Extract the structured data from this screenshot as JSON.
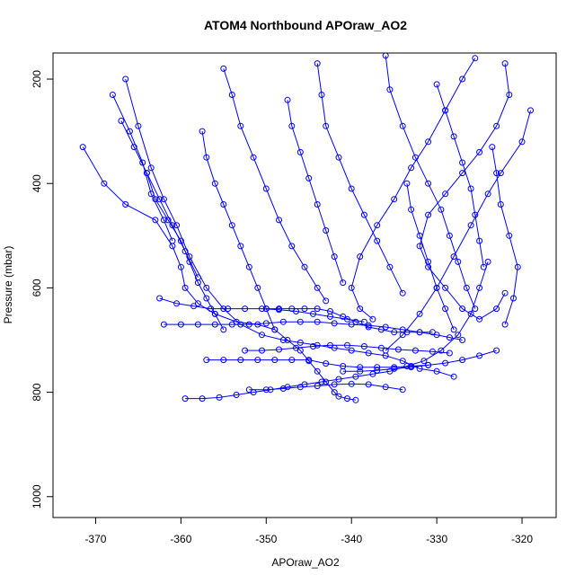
{
  "chart_data": {
    "type": "scatter",
    "title": "ATOM4 Northbound APOraw_AO2",
    "xlabel": "APOraw_AO2",
    "ylabel": "Pressure (mbar)",
    "xlim": [
      -375,
      -316
    ],
    "ylim": [
      1040,
      150
    ],
    "y_reversed": true,
    "x_ticks": [
      -370,
      -360,
      -350,
      -340,
      -330,
      -320
    ],
    "y_ticks": [
      200,
      400,
      600,
      800,
      1000
    ],
    "grid": false,
    "legend": "none",
    "marker": "open-circle",
    "line_style": "solid",
    "color": "#0000ff",
    "series": [
      {
        "x": [
          -371.5,
          -369.0,
          -366.5,
          -363.0,
          -361.0,
          -360.0,
          -359.5,
          -358.0,
          -356.0,
          -353.5,
          -351.0,
          -349.0,
          -347.5,
          -346.0,
          -345.0,
          -344.0,
          -343.0,
          -342.0,
          -341.5,
          -340.5,
          -339.5
        ],
        "y": [
          330,
          400,
          440,
          470,
          520,
          560,
          600,
          630,
          650,
          665,
          670,
          680,
          700,
          720,
          740,
          760,
          780,
          800,
          808,
          812,
          815
        ]
      },
      {
        "x": [
          -366.5,
          -365.0,
          -363.5,
          -362.0,
          -360.5,
          -359.0,
          -357.0,
          -355.0,
          -353.0,
          -350.5,
          -348.0,
          -346.0,
          -344.0,
          -342.0,
          -340.0,
          -338.0,
          -336.0,
          -334.0,
          -332.0,
          -330.0,
          -328.0
        ],
        "y": [
          200,
          290,
          370,
          430,
          480,
          540,
          600,
          640,
          670,
          690,
          700,
          705,
          710,
          715,
          720,
          725,
          730,
          740,
          755,
          760,
          770
        ]
      },
      {
        "x": [
          -359.5,
          -357.5,
          -355.5,
          -353.5,
          -351.5,
          -349.5,
          -347.5,
          -345.5,
          -343.5,
          -341.5,
          -339.5,
          -337.5,
          -335.5,
          -333.5,
          -331.5,
          -329.5,
          -327.5,
          -326.0,
          -325.0,
          -324.0
        ],
        "y": [
          812,
          812,
          810,
          805,
          800,
          795,
          790,
          785,
          780,
          775,
          770,
          765,
          760,
          750,
          740,
          720,
          690,
          650,
          600,
          550
        ]
      },
      {
        "x": [
          -362.0,
          -360.0,
          -358.0,
          -356.0,
          -354.0,
          -352.0,
          -350.0,
          -348.0,
          -346.0,
          -344.0,
          -342.0,
          -340.0,
          -338.0,
          -336.0,
          -334.0,
          -332.0,
          -330.0,
          -328.5,
          -327.0
        ],
        "y": [
          670,
          670,
          670,
          670,
          670,
          670,
          668,
          665,
          665,
          665,
          668,
          670,
          672,
          675,
          680,
          685,
          690,
          695,
          700
        ]
      },
      {
        "x": [
          -357.0,
          -355.0,
          -353.0,
          -351.0,
          -349.0,
          -347.0,
          -345.0,
          -343.0,
          -341.0,
          -339.0,
          -337.0,
          -335.0,
          -333.0,
          -331.0
        ],
        "y": [
          738,
          738,
          738,
          738,
          738,
          738,
          738,
          745,
          750,
          752,
          752,
          752,
          750,
          748
        ]
      },
      {
        "x": [
          -350.0,
          -348.5,
          -347.0,
          -345.5,
          -344.0,
          -342.5,
          -341.0,
          -339.5,
          -338.0,
          -336.5,
          -335.0,
          -333.5,
          -332.0,
          -330.5
        ],
        "y": [
          640,
          640,
          640,
          640,
          640,
          645,
          655,
          665,
          675,
          680,
          685,
          685,
          685,
          685
        ]
      },
      {
        "x": [
          -352.0,
          -350.0,
          -348.0,
          -346.0,
          -344.0,
          -342.0,
          -340.0,
          -338.0,
          -336.0,
          -334.0
        ],
        "y": [
          795,
          795,
          793,
          790,
          788,
          785,
          784,
          785,
          790,
          795
        ]
      },
      {
        "x": [
          -325.5,
          -327.0,
          -329.0,
          -331.0,
          -333.0,
          -335.0,
          -337.0,
          -339.0,
          -340.0,
          -339.0,
          -337.5
        ],
        "y": [
          160,
          200,
          260,
          320,
          370,
          430,
          480,
          540,
          600,
          640,
          660
        ]
      },
      {
        "x": [
          -322.0,
          -321.5,
          -323.0,
          -325.0,
          -327.0,
          -329.0,
          -331.0,
          -332.0,
          -331.0,
          -329.0,
          -327.0,
          -325.0,
          -323.0,
          -322.0
        ],
        "y": [
          170,
          230,
          290,
          340,
          380,
          420,
          460,
          520,
          560,
          600,
          640,
          660,
          640,
          610
        ]
      },
      {
        "x": [
          -319.0,
          -320.0,
          -322.5,
          -324.0,
          -326.0,
          -328.0,
          -330.0,
          -332.0,
          -334.0,
          -336.0
        ],
        "y": [
          260,
          320,
          380,
          420,
          480,
          540,
          600,
          650,
          690,
          720
        ]
      },
      {
        "x": [
          -355.0,
          -354.0,
          -353.0,
          -351.5,
          -350.0,
          -348.5,
          -347.0,
          -345.5,
          -344.0,
          -343.0
        ],
        "y": [
          180,
          230,
          290,
          350,
          410,
          470,
          520,
          560,
          600,
          625
        ]
      },
      {
        "x": [
          -344.0,
          -343.5,
          -343.0,
          -341.5,
          -340.0,
          -338.5,
          -337.0,
          -335.5,
          -334.0
        ],
        "y": [
          170,
          230,
          290,
          350,
          410,
          460,
          510,
          560,
          610
        ]
      },
      {
        "x": [
          -336.0,
          -335.5,
          -334.0,
          -332.5,
          -331.0,
          -329.5,
          -328.5,
          -327.5,
          -326.5,
          -325.5
        ],
        "y": [
          155,
          220,
          290,
          350,
          400,
          450,
          500,
          550,
          600,
          640
        ]
      },
      {
        "x": [
          -364.0,
          -363.0,
          -361.5,
          -360.0,
          -359.0,
          -358.0,
          -357.0,
          -356.0,
          -355.0
        ],
        "y": [
          380,
          430,
          470,
          510,
          550,
          590,
          620,
          650,
          680
        ]
      },
      {
        "x": [
          -357.5,
          -357.0,
          -356.0,
          -355.0,
          -354.0,
          -353.0,
          -352.0,
          -351.0,
          -350.0,
          -349.0
        ],
        "y": [
          300,
          350,
          400,
          440,
          480,
          520,
          560,
          600,
          640,
          680
        ]
      },
      {
        "x": [
          -347.5,
          -347.0,
          -346.0,
          -345.0,
          -344.0,
          -343.0,
          -342.0,
          -341.0
        ],
        "y": [
          240,
          290,
          340,
          390,
          440,
          490,
          540,
          590
        ]
      },
      {
        "x": [
          -330.0,
          -329.0,
          -328.0,
          -327.0,
          -326.0,
          -325.5,
          -325.0,
          -324.5
        ],
        "y": [
          210,
          260,
          310,
          360,
          410,
          460,
          510,
          560
        ]
      },
      {
        "x": [
          -362.5,
          -360.5,
          -358.5,
          -356.5,
          -354.5,
          -352.5,
          -350.5,
          -348.5,
          -346.5,
          -344.5,
          -342.5,
          -340.5,
          -338.5
        ],
        "y": [
          620,
          630,
          635,
          640,
          640,
          640,
          640,
          642,
          645,
          650,
          655,
          660,
          665
        ]
      },
      {
        "x": [
          -352.5,
          -350.5,
          -348.5,
          -346.5,
          -344.5,
          -342.5,
          -340.5,
          -338.5,
          -336.5,
          -334.5,
          -332.5,
          -330.5,
          -328.5
        ],
        "y": [
          720,
          720,
          718,
          715,
          712,
          710,
          710,
          712,
          715,
          718,
          720,
          722,
          725
        ]
      },
      {
        "x": [
          -341.0,
          -339.0,
          -337.0,
          -335.0,
          -333.0,
          -331.0,
          -329.0,
          -327.0,
          -325.0,
          -323.0
        ],
        "y": [
          760,
          760,
          758,
          755,
          752,
          748,
          744,
          738,
          730,
          720
        ]
      },
      {
        "x": [
          -367.0,
          -365.5,
          -364.0,
          -362.5,
          -361.0,
          -359.5,
          -358.0
        ],
        "y": [
          280,
          330,
          380,
          430,
          480,
          530,
          580
        ]
      },
      {
        "x": [
          -368.0,
          -366.0,
          -364.5,
          -363.5,
          -362.0,
          -361.0
        ],
        "y": [
          230,
          300,
          360,
          420,
          470,
          510
        ]
      },
      {
        "x": [
          -323.5,
          -323.0,
          -322.5,
          -321.5,
          -320.5,
          -321.0,
          -322.0
        ],
        "y": [
          330,
          380,
          440,
          500,
          560,
          620,
          670
        ]
      },
      {
        "x": [
          -333.5,
          -333.0,
          -332.0,
          -331.0,
          -330.0,
          -329.0,
          -328.0
        ],
        "y": [
          400,
          450,
          500,
          550,
          600,
          640,
          680
        ]
      }
    ]
  }
}
